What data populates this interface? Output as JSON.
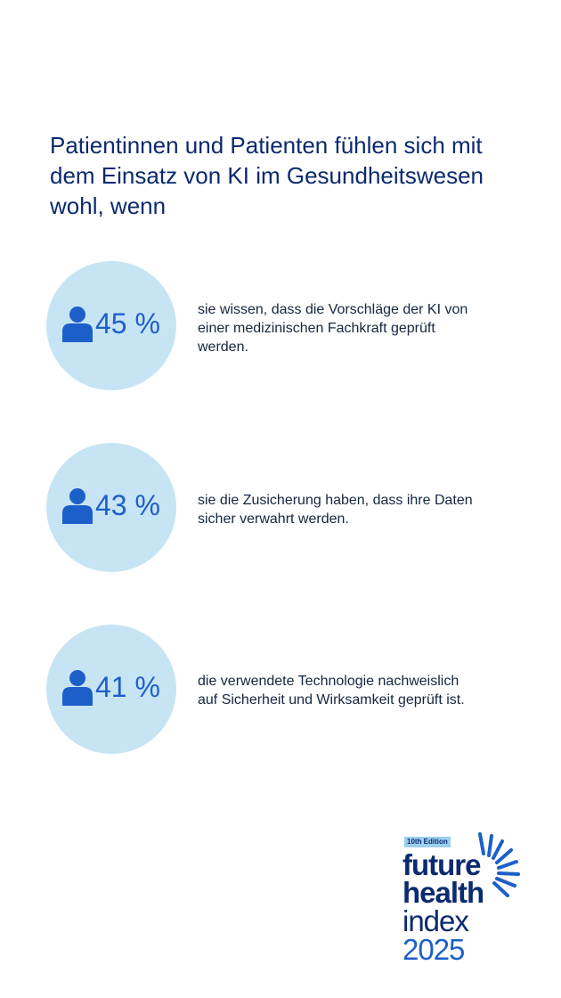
{
  "title_lines": [
    "Patientinnen und Patienten fühlen sich mit",
    "dem Einsatz von KI im Gesundheitswesen",
    "wohl, wenn"
  ],
  "chart_data": {
    "type": "table",
    "title": "Patientinnen und Patienten fühlen sich mit dem Einsatz von KI im Gesundheitswesen wohl, wenn",
    "unit": "%",
    "items": [
      {
        "value": 45,
        "label": "45 %",
        "desc_lines": [
          "sie wissen, dass die Vorschläge der KI von",
          "einer medizinischen Fachkraft geprüft",
          "werden."
        ]
      },
      {
        "value": 43,
        "label": "43 %",
        "desc_lines": [
          "sie die Zusicherung haben, dass ihre Daten",
          "sicher verwahrt werden."
        ]
      },
      {
        "value": 41,
        "label": "41 %",
        "desc_lines": [
          "die verwendete Technologie nachweislich",
          "auf Sicherheit und Wirksamkeit geprüft ist."
        ]
      }
    ]
  },
  "logo": {
    "edition": "10th Edition",
    "line1": "future",
    "line2": "health",
    "line3": "index",
    "year": "2025",
    "icon": "sunburst-icon"
  },
  "colors": {
    "circle": "#c7e4f4",
    "accent": "#1d5fc9",
    "title": "#0b2a6f"
  }
}
